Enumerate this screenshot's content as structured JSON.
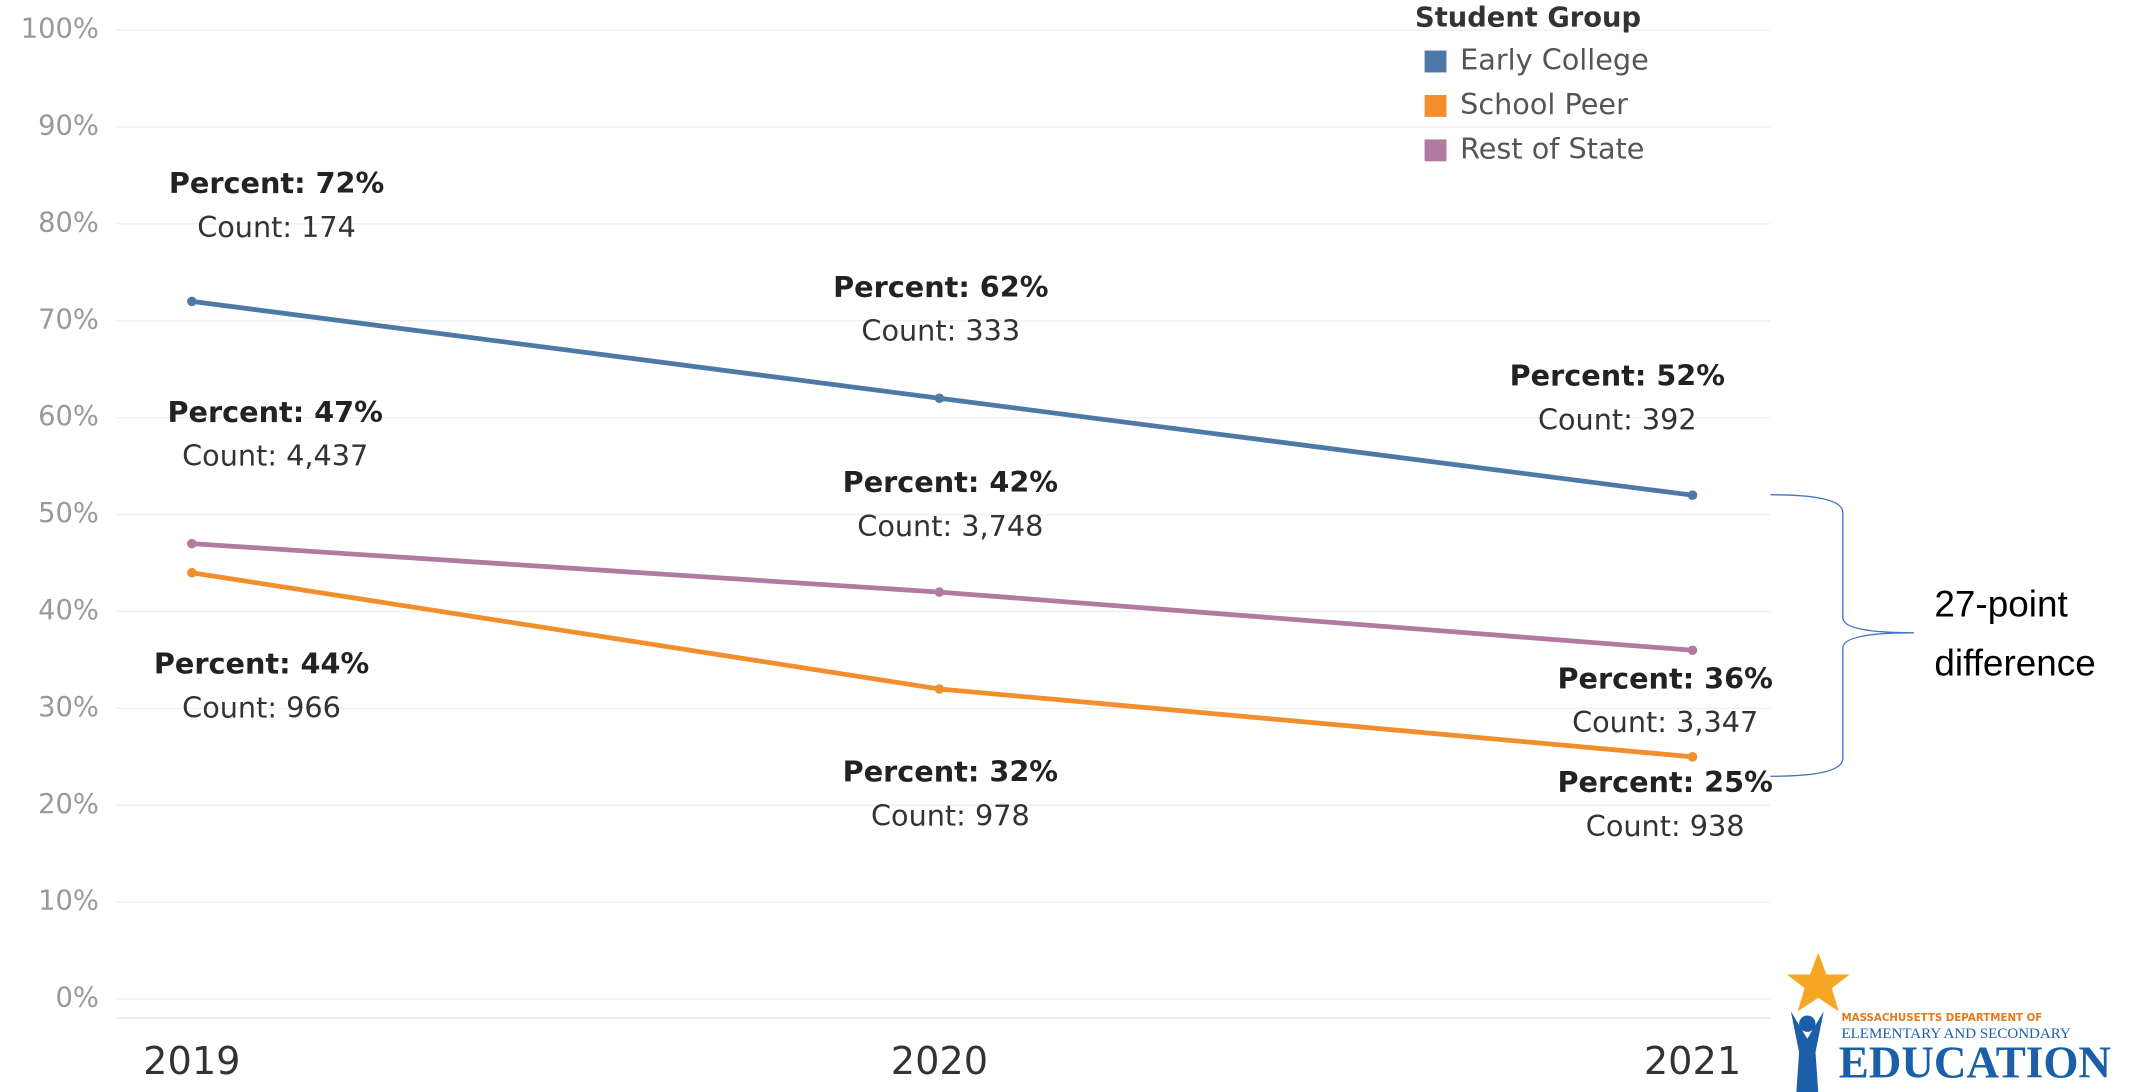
{
  "chart_data": {
    "type": "line",
    "categories": [
      "2019",
      "2020",
      "2021"
    ],
    "series": [
      {
        "name": "Early College",
        "color": "#4e79a7",
        "values": [
          72,
          62,
          52
        ],
        "value_labels": [
          "Percent: 72%",
          "Percent: 62%",
          "Percent: 52%"
        ],
        "counts": [
          174,
          333,
          392
        ],
        "count_labels": [
          "Count: 174",
          "Count: 333",
          "Count: 392"
        ]
      },
      {
        "name": "School Peer",
        "color": "#f28e2b",
        "values": [
          44,
          32,
          25
        ],
        "value_labels": [
          "Percent: 44%",
          "Percent: 32%",
          "Percent: 25%"
        ],
        "counts": [
          966,
          978,
          938
        ],
        "count_labels": [
          "Count: 966",
          "Count: 978",
          "Count: 938"
        ]
      },
      {
        "name": "Rest of State",
        "color": "#b07aa1",
        "values": [
          47,
          42,
          36
        ],
        "value_labels": [
          "Percent: 47%",
          "Percent: 42%",
          "Percent: 36%"
        ],
        "counts": [
          4437,
          3748,
          3347
        ],
        "count_labels": [
          "Count: 4,437",
          "Count: 3,748",
          "Count: 3,347"
        ]
      }
    ],
    "legend_title": "Student Group",
    "legend": "top-right",
    "ylim": [
      0,
      100
    ],
    "yticks": [
      {
        "value": 0,
        "label": "0%"
      },
      {
        "value": 10,
        "label": "10%"
      },
      {
        "value": 20,
        "label": "20%"
      },
      {
        "value": 30,
        "label": "30%"
      },
      {
        "value": 40,
        "label": "40%"
      },
      {
        "value": 50,
        "label": "50%"
      },
      {
        "value": 60,
        "label": "60%"
      },
      {
        "value": 70,
        "label": "70%"
      },
      {
        "value": 80,
        "label": "80%"
      },
      {
        "value": 90,
        "label": "90%"
      },
      {
        "value": 100,
        "label": "100%"
      }
    ],
    "grid": true,
    "annotation": [
      "27-point",
      "difference"
    ]
  },
  "logo": {
    "line1": "MASSACHUSETTS DEPARTMENT OF",
    "line2": "ELEMENTARY AND SECONDARY",
    "line3": "EDUCATION"
  }
}
